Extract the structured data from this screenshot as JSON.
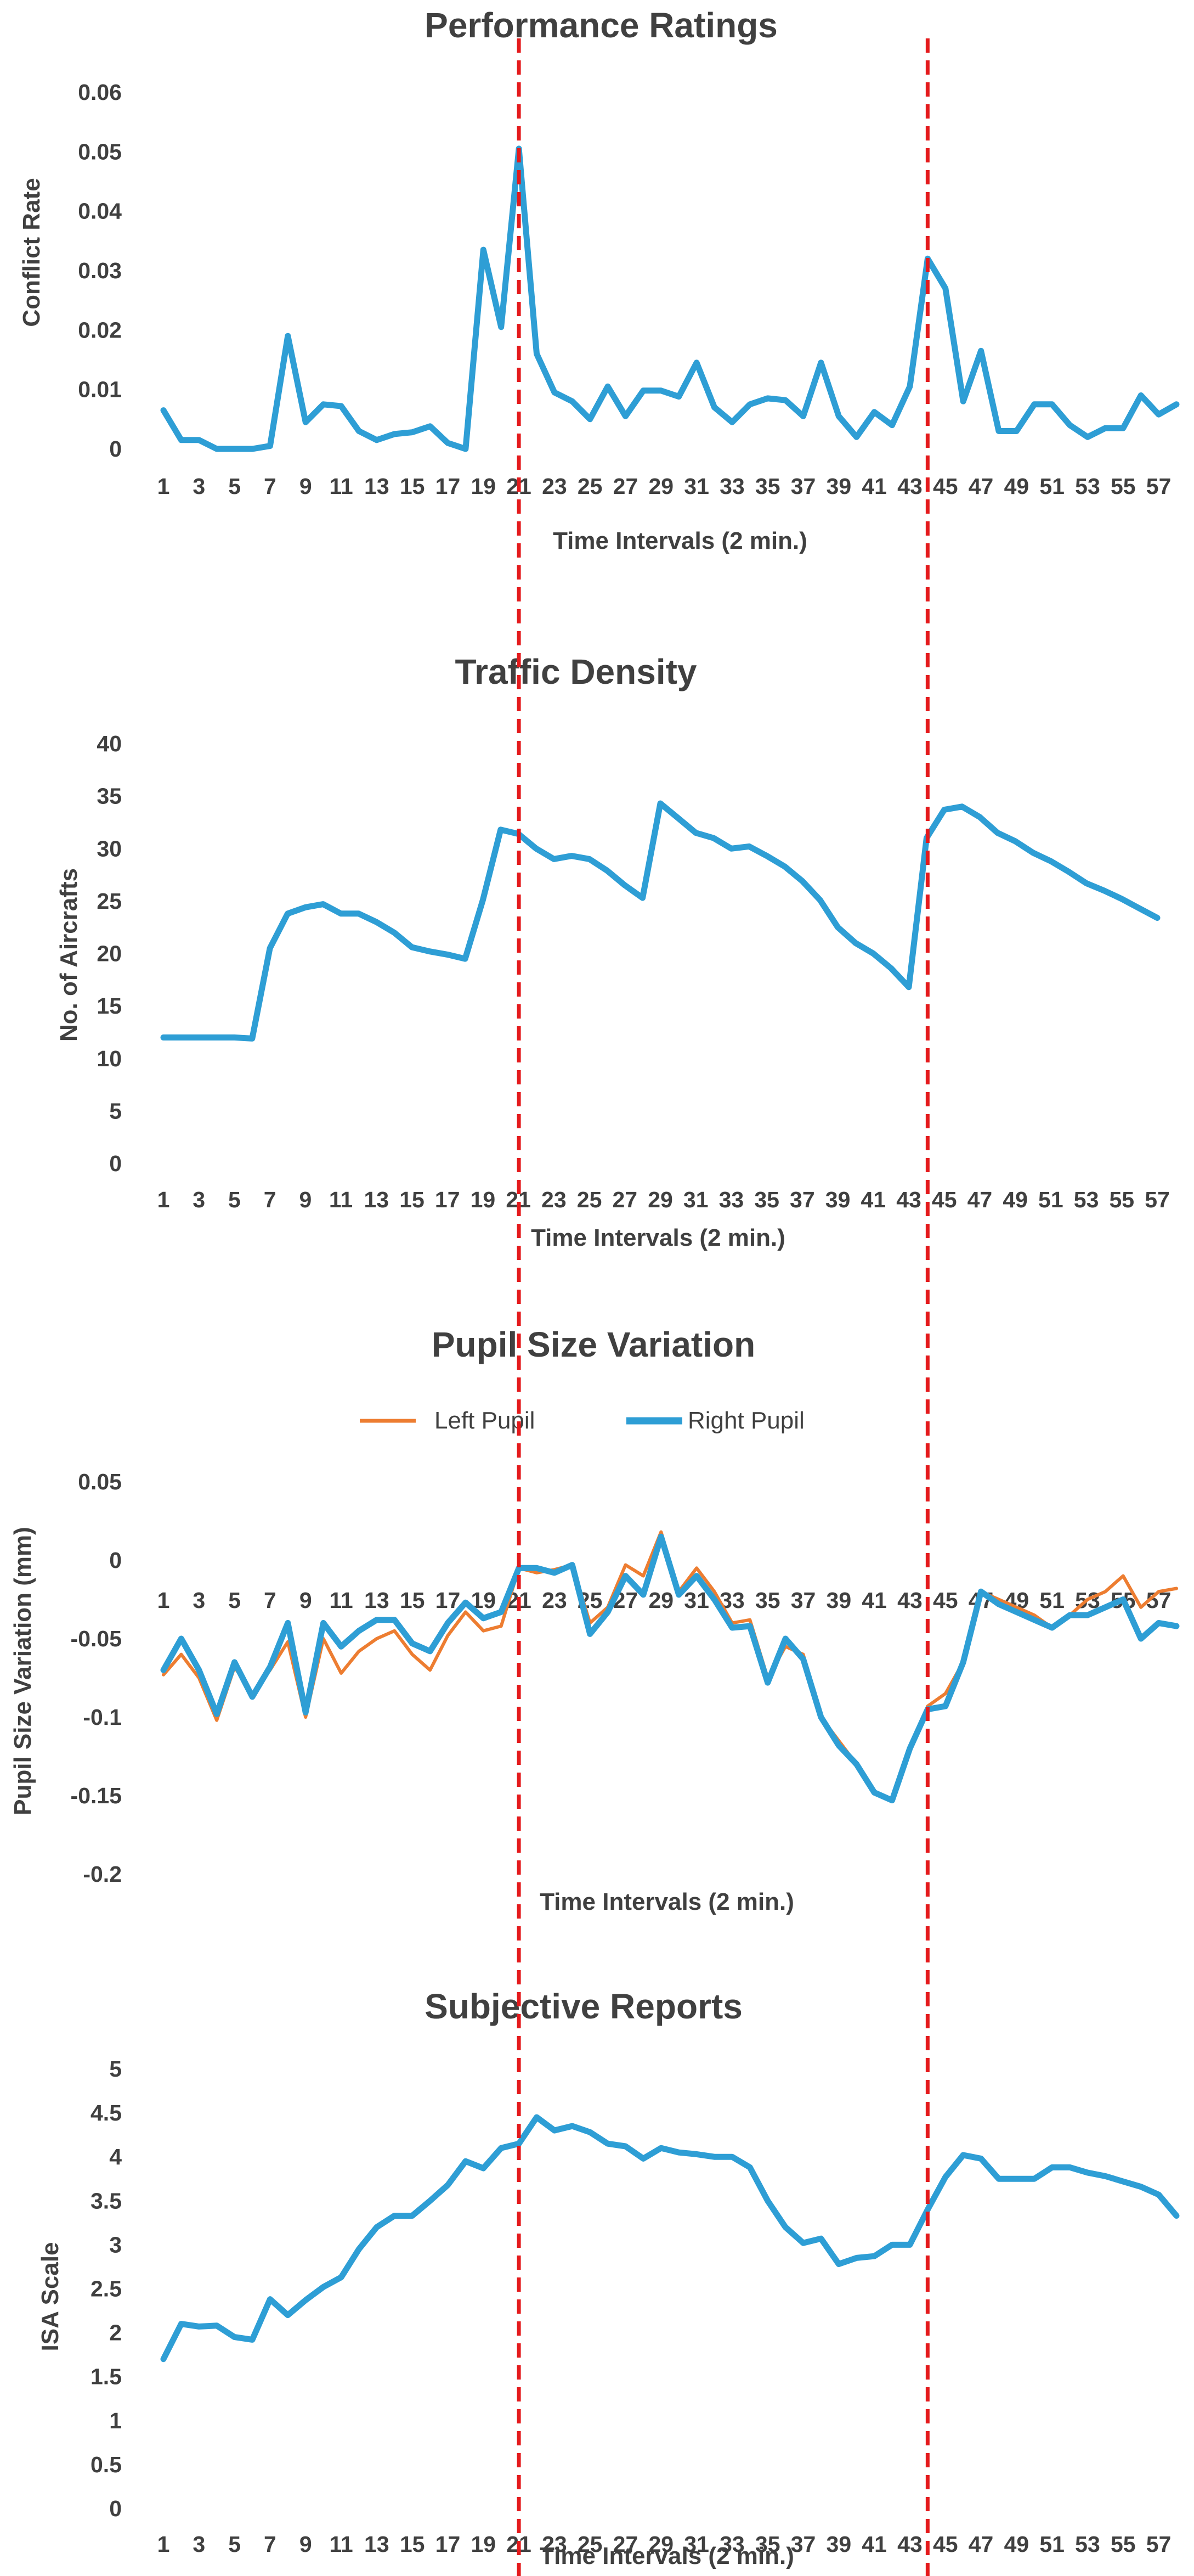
{
  "colors": {
    "blue": "#2E9ED5",
    "orange": "#ED7D31",
    "red": "#E41A1C",
    "text": "#404040"
  },
  "chart_data": [
    {
      "type": "line",
      "title": "Performance Ratings",
      "xlabel": "Time Intervals (2 min.)",
      "ylabel": "Conflict Rate",
      "x": [
        1,
        2,
        3,
        4,
        5,
        6,
        7,
        8,
        9,
        10,
        11,
        12,
        13,
        14,
        15,
        16,
        17,
        18,
        19,
        20,
        21,
        22,
        23,
        24,
        25,
        26,
        27,
        28,
        29,
        30,
        31,
        32,
        33,
        34,
        35,
        36,
        37,
        38,
        39,
        40,
        41,
        42,
        43,
        44,
        45,
        46,
        47,
        48,
        49,
        50,
        51,
        52,
        53,
        54,
        55,
        56,
        57,
        58
      ],
      "ylim": [
        0,
        0.06
      ],
      "yticks": [
        "0.06",
        "0.05",
        "0.04",
        "0.03",
        "0.02",
        "0.01",
        "0"
      ],
      "xtick_labels": [
        "1",
        "3",
        "5",
        "7",
        "9",
        "11",
        "13",
        "15",
        "17",
        "19",
        "21",
        "23",
        "25",
        "27",
        "29",
        "31",
        "33",
        "35",
        "37",
        "39",
        "41",
        "43",
        "45",
        "47",
        "49",
        "51",
        "53",
        "55",
        "57"
      ],
      "series": [
        {
          "name": "Conflict Rate",
          "color": "#2E9ED5",
          "values": [
            0.0065,
            0.0015,
            0.0015,
            0.0,
            0.0,
            0.0,
            0.0005,
            0.019,
            0.0045,
            0.0075,
            0.0072,
            0.003,
            0.0015,
            0.0025,
            0.0028,
            0.0038,
            0.001,
            0.0,
            0.0335,
            0.0205,
            0.0505,
            0.016,
            0.0095,
            0.008,
            0.005,
            0.0105,
            0.0055,
            0.0098,
            0.0098,
            0.0088,
            0.0145,
            0.007,
            0.0045,
            0.0075,
            0.0085,
            0.0082,
            0.0055,
            0.0145,
            0.0055,
            0.002,
            0.0062,
            0.004,
            0.0105,
            0.032,
            0.027,
            0.008,
            0.0165,
            0.003,
            0.003,
            0.0075,
            0.0075,
            0.004,
            0.002,
            0.0035,
            0.0035,
            0.009,
            0.0058,
            0.0075
          ]
        }
      ]
    },
    {
      "type": "line",
      "title": "Traffic Density",
      "xlabel": "Time Intervals (2 min.)",
      "ylabel": "No. of Aircrafts",
      "x": [
        1,
        2,
        3,
        4,
        5,
        6,
        7,
        8,
        9,
        10,
        11,
        12,
        13,
        14,
        15,
        16,
        17,
        18,
        19,
        20,
        21,
        22,
        23,
        24,
        25,
        26,
        27,
        28,
        29,
        30,
        31,
        32,
        33,
        34,
        35,
        36,
        37,
        38,
        39,
        40,
        41,
        42,
        43,
        44,
        45,
        46,
        47,
        48,
        49,
        50,
        51,
        52,
        53,
        54,
        55,
        56,
        57
      ],
      "ylim": [
        0,
        40
      ],
      "yticks": [
        "40",
        "35",
        "30",
        "25",
        "20",
        "15",
        "10",
        "5",
        "0"
      ],
      "xtick_labels": [
        "1",
        "3",
        "5",
        "7",
        "9",
        "11",
        "13",
        "15",
        "17",
        "19",
        "21",
        "23",
        "25",
        "27",
        "29",
        "31",
        "33",
        "35",
        "37",
        "39",
        "41",
        "43",
        "45",
        "47",
        "49",
        "51",
        "53",
        "55",
        "57"
      ],
      "series": [
        {
          "name": "No. of Aircrafts",
          "color": "#2E9ED5",
          "values": [
            12,
            12,
            12,
            12,
            12,
            11.9,
            20.5,
            23.8,
            24.4,
            24.7,
            23.8,
            23.8,
            23,
            22,
            20.6,
            20.2,
            19.9,
            19.5,
            25.1,
            31.8,
            31.4,
            30,
            29,
            29.3,
            29,
            27.9,
            26.5,
            25.3,
            34.3,
            32.9,
            31.5,
            31,
            30,
            30.2,
            29.3,
            28.3,
            26.9,
            25.1,
            22.5,
            21,
            20,
            18.6,
            16.8,
            31,
            33.7,
            34,
            33,
            31.5,
            30.7,
            29.6,
            28.8,
            27.8,
            26.7,
            26,
            25.2,
            24.3,
            23.4
          ]
        }
      ]
    },
    {
      "type": "line",
      "title": "Pupil Size Variation",
      "xlabel": "Time Intervals (2 min.)",
      "ylabel": "Pupil Size Variation (mm)",
      "x": [
        1,
        2,
        3,
        4,
        5,
        6,
        7,
        8,
        9,
        10,
        11,
        12,
        13,
        14,
        15,
        16,
        17,
        18,
        19,
        20,
        21,
        22,
        23,
        24,
        25,
        26,
        27,
        28,
        29,
        30,
        31,
        32,
        33,
        34,
        35,
        36,
        37,
        38,
        39,
        40,
        41,
        42,
        43,
        44,
        45,
        46,
        47,
        48,
        49,
        50,
        51,
        52,
        53,
        54,
        55,
        56,
        57,
        58
      ],
      "ylim": [
        -0.2,
        0.05
      ],
      "yticks": [
        "0.05",
        "0",
        "-0.05",
        "-0.1",
        "-0.15",
        "-0.2"
      ],
      "xtick_labels": [
        "1",
        "3",
        "5",
        "7",
        "9",
        "11",
        "13",
        "15",
        "17",
        "19",
        "21",
        "23",
        "25",
        "27",
        "29",
        "31",
        "33",
        "35",
        "37",
        "39",
        "41",
        "43",
        "45",
        "47",
        "49",
        "51",
        "53",
        "55",
        "57"
      ],
      "legend": [
        "Left Pupil",
        "Right Pupil"
      ],
      "series": [
        {
          "name": "Left Pupil",
          "color": "#ED7D31",
          "values": [
            -0.073,
            -0.06,
            -0.075,
            -0.102,
            -0.068,
            -0.085,
            -0.07,
            -0.052,
            -0.1,
            -0.05,
            -0.072,
            -0.058,
            -0.05,
            -0.045,
            -0.06,
            -0.07,
            -0.048,
            -0.033,
            -0.045,
            -0.042,
            -0.005,
            -0.008,
            -0.006,
            -0.003,
            -0.04,
            -0.03,
            -0.003,
            -0.01,
            0.018,
            -0.02,
            -0.005,
            -0.02,
            -0.04,
            -0.038,
            -0.075,
            -0.055,
            -0.06,
            -0.1,
            -0.115,
            -0.13,
            -0.148,
            -0.153,
            -0.12,
            -0.093,
            -0.085,
            -0.065,
            -0.02,
            -0.025,
            -0.03,
            -0.035,
            -0.043,
            -0.035,
            -0.025,
            -0.02,
            -0.01,
            -0.03,
            -0.02,
            -0.018
          ]
        },
        {
          "name": "Right Pupil",
          "color": "#2E9ED5",
          "values": [
            -0.07,
            -0.05,
            -0.07,
            -0.098,
            -0.065,
            -0.087,
            -0.068,
            -0.04,
            -0.097,
            -0.04,
            -0.055,
            -0.045,
            -0.038,
            -0.038,
            -0.053,
            -0.058,
            -0.04,
            -0.027,
            -0.037,
            -0.033,
            -0.005,
            -0.005,
            -0.008,
            -0.003,
            -0.047,
            -0.033,
            -0.01,
            -0.022,
            0.015,
            -0.022,
            -0.01,
            -0.025,
            -0.043,
            -0.042,
            -0.078,
            -0.05,
            -0.063,
            -0.1,
            -0.118,
            -0.13,
            -0.148,
            -0.153,
            -0.12,
            -0.095,
            -0.093,
            -0.065,
            -0.02,
            -0.028,
            -0.033,
            -0.038,
            -0.043,
            -0.035,
            -0.035,
            -0.03,
            -0.025,
            -0.05,
            -0.04,
            -0.042
          ]
        }
      ]
    },
    {
      "type": "line",
      "title": "Subjective Reports",
      "xlabel": "Time Intervals (2 min.)",
      "ylabel": "ISA Scale",
      "x": [
        1,
        2,
        3,
        4,
        5,
        6,
        7,
        8,
        9,
        10,
        11,
        12,
        13,
        14,
        15,
        16,
        17,
        18,
        19,
        20,
        21,
        22,
        23,
        24,
        25,
        26,
        27,
        28,
        29,
        30,
        31,
        32,
        33,
        34,
        35,
        36,
        37,
        38,
        39,
        40,
        41,
        42,
        43,
        44,
        45,
        46,
        47,
        48,
        49,
        50,
        51,
        52,
        53,
        54,
        55,
        56,
        57,
        58
      ],
      "ylim": [
        0,
        5
      ],
      "yticks": [
        "5",
        "4.5",
        "4",
        "3.5",
        "3",
        "2.5",
        "2",
        "1.5",
        "1",
        "0.5",
        "0"
      ],
      "xtick_labels": [
        "1",
        "3",
        "5",
        "7",
        "9",
        "11",
        "13",
        "15",
        "17",
        "19",
        "21",
        "23",
        "25",
        "27",
        "29",
        "31",
        "33",
        "35",
        "37",
        "39",
        "41",
        "43",
        "45",
        "47",
        "49",
        "51",
        "53",
        "55",
        "57"
      ],
      "series": [
        {
          "name": "ISA Scale",
          "color": "#2E9ED5",
          "values": [
            1.7,
            2.1,
            2.07,
            2.08,
            1.95,
            1.92,
            2.38,
            2.2,
            2.37,
            2.52,
            2.63,
            2.95,
            3.2,
            3.33,
            3.33,
            3.5,
            3.68,
            3.95,
            3.87,
            4.1,
            4.15,
            4.45,
            4.3,
            4.35,
            4.28,
            4.15,
            4.12,
            3.98,
            4.1,
            4.05,
            4.03,
            4.0,
            4.0,
            3.88,
            3.5,
            3.2,
            3.02,
            3.07,
            2.78,
            2.85,
            2.87,
            3.0,
            3.0,
            3.4,
            3.77,
            4.02,
            3.98,
            3.75,
            3.75,
            3.75,
            3.88,
            3.88,
            3.82,
            3.78,
            3.72,
            3.66,
            3.57,
            3.33
          ]
        }
      ]
    }
  ],
  "markers": {
    "vertical_lines_at_x": [
      21,
      44
    ],
    "style": "dashed"
  }
}
